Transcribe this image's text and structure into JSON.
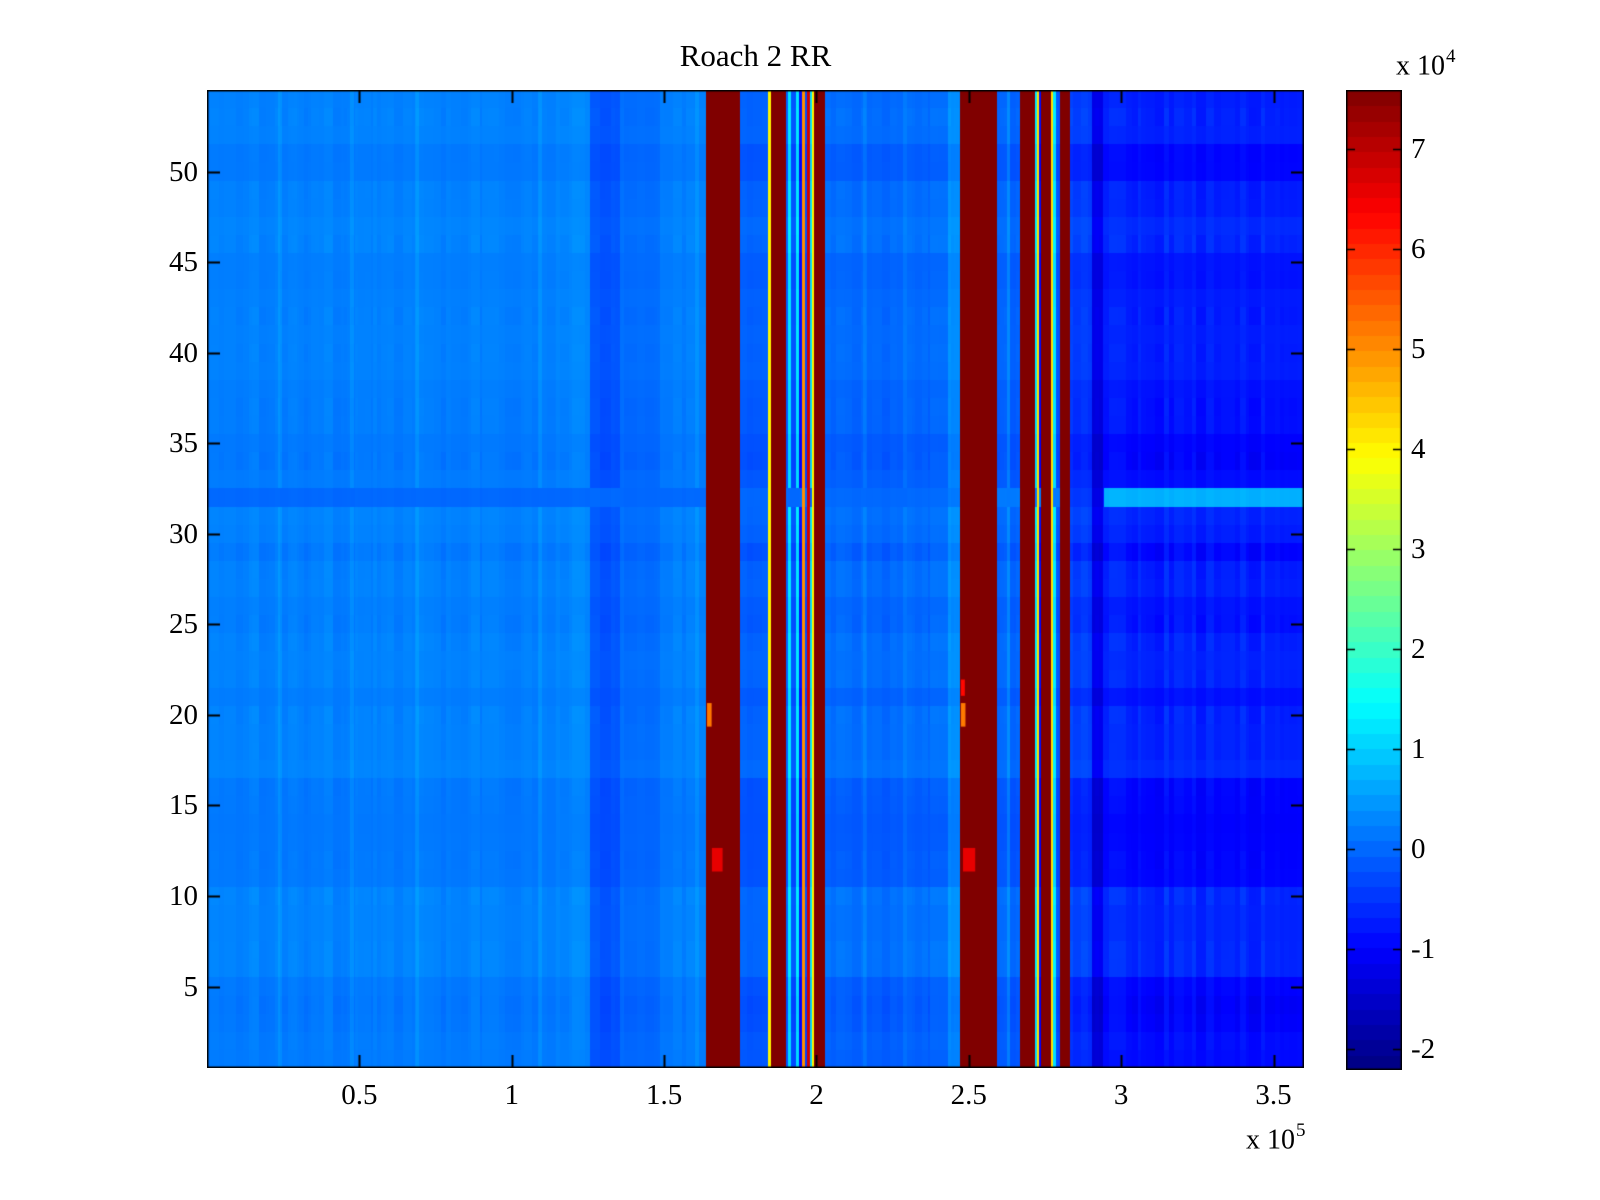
{
  "chart_data": {
    "type": "heatmap",
    "title": "Roach 2 RR",
    "colormap": "jet",
    "background": "#ffffff",
    "x_axis": {
      "lim_e5": [
        0,
        3.6
      ],
      "ticks_e5": [
        0.5,
        1,
        1.5,
        2,
        2.5,
        3,
        3.5
      ],
      "tick_labels": [
        "0.5",
        "1",
        "1.5",
        "2",
        "2.5",
        "3",
        "3.5"
      ],
      "offset_base": "x 10",
      "offset_exp": "5"
    },
    "y_axis": {
      "lim": [
        0.5,
        54.5
      ],
      "rows": 54,
      "ticks": [
        5,
        10,
        15,
        20,
        25,
        30,
        35,
        40,
        45,
        50
      ]
    },
    "colorbar": {
      "value_range_e4": [
        -2.21,
        7.59
      ],
      "ticks_e4": [
        7,
        6,
        5,
        4,
        3,
        2,
        1,
        0,
        -1,
        -2
      ],
      "n_levels": 64,
      "offset_base": "x 10",
      "offset_exp": "4",
      "max_color": "#800000",
      "min_color": "#00008f"
    },
    "bands_x0_x1_value": [
      [
        0.0,
        1.145,
        0.24
      ],
      [
        1.145,
        1.257,
        0.3
      ],
      [
        1.257,
        1.355,
        -0.18
      ],
      [
        1.355,
        1.487,
        0.08
      ],
      [
        1.487,
        1.638,
        0.22
      ],
      [
        1.638,
        1.749,
        7.7
      ],
      [
        1.749,
        1.841,
        -0.05
      ],
      [
        1.841,
        1.851,
        4.0
      ],
      [
        1.851,
        1.9,
        7.7
      ],
      [
        1.9,
        1.907,
        -0.1
      ],
      [
        1.907,
        1.917,
        1.2
      ],
      [
        1.917,
        1.933,
        -0.2
      ],
      [
        1.933,
        1.943,
        1.2
      ],
      [
        1.943,
        1.952,
        -0.9
      ],
      [
        1.952,
        1.962,
        5.0
      ],
      [
        1.962,
        1.969,
        -0.3
      ],
      [
        1.969,
        1.979,
        6.8
      ],
      [
        1.979,
        1.985,
        1.2
      ],
      [
        1.985,
        1.992,
        4.0
      ],
      [
        1.992,
        2.028,
        7.7
      ],
      [
        2.028,
        2.432,
        0.0
      ],
      [
        2.432,
        2.471,
        0.35
      ],
      [
        2.471,
        2.593,
        7.7
      ],
      [
        2.593,
        2.625,
        -0.05
      ],
      [
        2.625,
        2.635,
        0.3
      ],
      [
        2.635,
        2.668,
        -0.1
      ],
      [
        2.668,
        2.717,
        7.7
      ],
      [
        2.717,
        2.724,
        1.2
      ],
      [
        2.724,
        2.73,
        4.2
      ],
      [
        2.73,
        2.737,
        -0.9
      ],
      [
        2.737,
        2.77,
        7.7
      ],
      [
        2.77,
        2.776,
        4.2
      ],
      [
        2.776,
        2.786,
        1.2
      ],
      [
        2.786,
        2.799,
        -0.2
      ],
      [
        2.799,
        2.832,
        7.7
      ],
      [
        2.832,
        2.905,
        -0.45
      ],
      [
        2.905,
        2.94,
        -1.25
      ],
      [
        2.94,
        3.6,
        -0.74
      ]
    ],
    "hot_spots": [
      {
        "x0": 1.641,
        "x1": 1.656,
        "row": 20,
        "span": 1.3,
        "v": 5.2
      },
      {
        "x0": 1.657,
        "x1": 1.692,
        "row": 12,
        "span": 1.3,
        "v": 6.6
      },
      {
        "x0": 2.474,
        "x1": 2.489,
        "row": 20,
        "span": 1.3,
        "v": 5.2
      },
      {
        "x0": 2.474,
        "x1": 2.487,
        "row": 21.5,
        "span": 0.9,
        "v": 6.3
      },
      {
        "x0": 2.481,
        "x1": 2.521,
        "row": 12,
        "span": 1.3,
        "v": 6.6
      }
    ],
    "light_columns": [
      {
        "x": 0.24
      },
      {
        "x": 0.476
      },
      {
        "x": 0.689
      },
      {
        "x": 1.093
      },
      {
        "x": 1.608
      },
      {
        "x": 2.159
      },
      {
        "x": 2.291
      }
    ],
    "light_column_width": 0.007,
    "light_column_dv": 0.17,
    "row32_profile": [
      {
        "xmax": 2.432,
        "v": 0.02
      },
      {
        "xmax": 2.832,
        "v": 0.18
      },
      {
        "xmax": 2.944,
        "v": null
      },
      {
        "xmax": 3.6,
        "v": 0.72
      }
    ],
    "row_shading": {
      "54": 0.05,
      "53": 0.1,
      "52": 0.08,
      "47": 0.18,
      "46": 0.15,
      "35": -0.22,
      "34": -0.22,
      "33": -0.12,
      "28": 0.08,
      "27": 0.1,
      "16": -0.18,
      "15": -0.2,
      "14": -0.24,
      "13": -0.22,
      "9": 0.12,
      "8": 0.12,
      "5": -0.18,
      "4": -0.24,
      "3": -0.2,
      "2": -0.1
    },
    "noise": {
      "seed": 1337,
      "col_amp": 0.06,
      "col_amp_right": 0.11,
      "row_amp": 0.38,
      "run_min": 2,
      "run_max": 11,
      "region_scales": [
        {
          "xmax": 1.638,
          "s": 0.3
        },
        {
          "xmax": 2.832,
          "s": 0.6
        },
        {
          "xmax": 3.6,
          "s": 1.0
        }
      ]
    }
  }
}
